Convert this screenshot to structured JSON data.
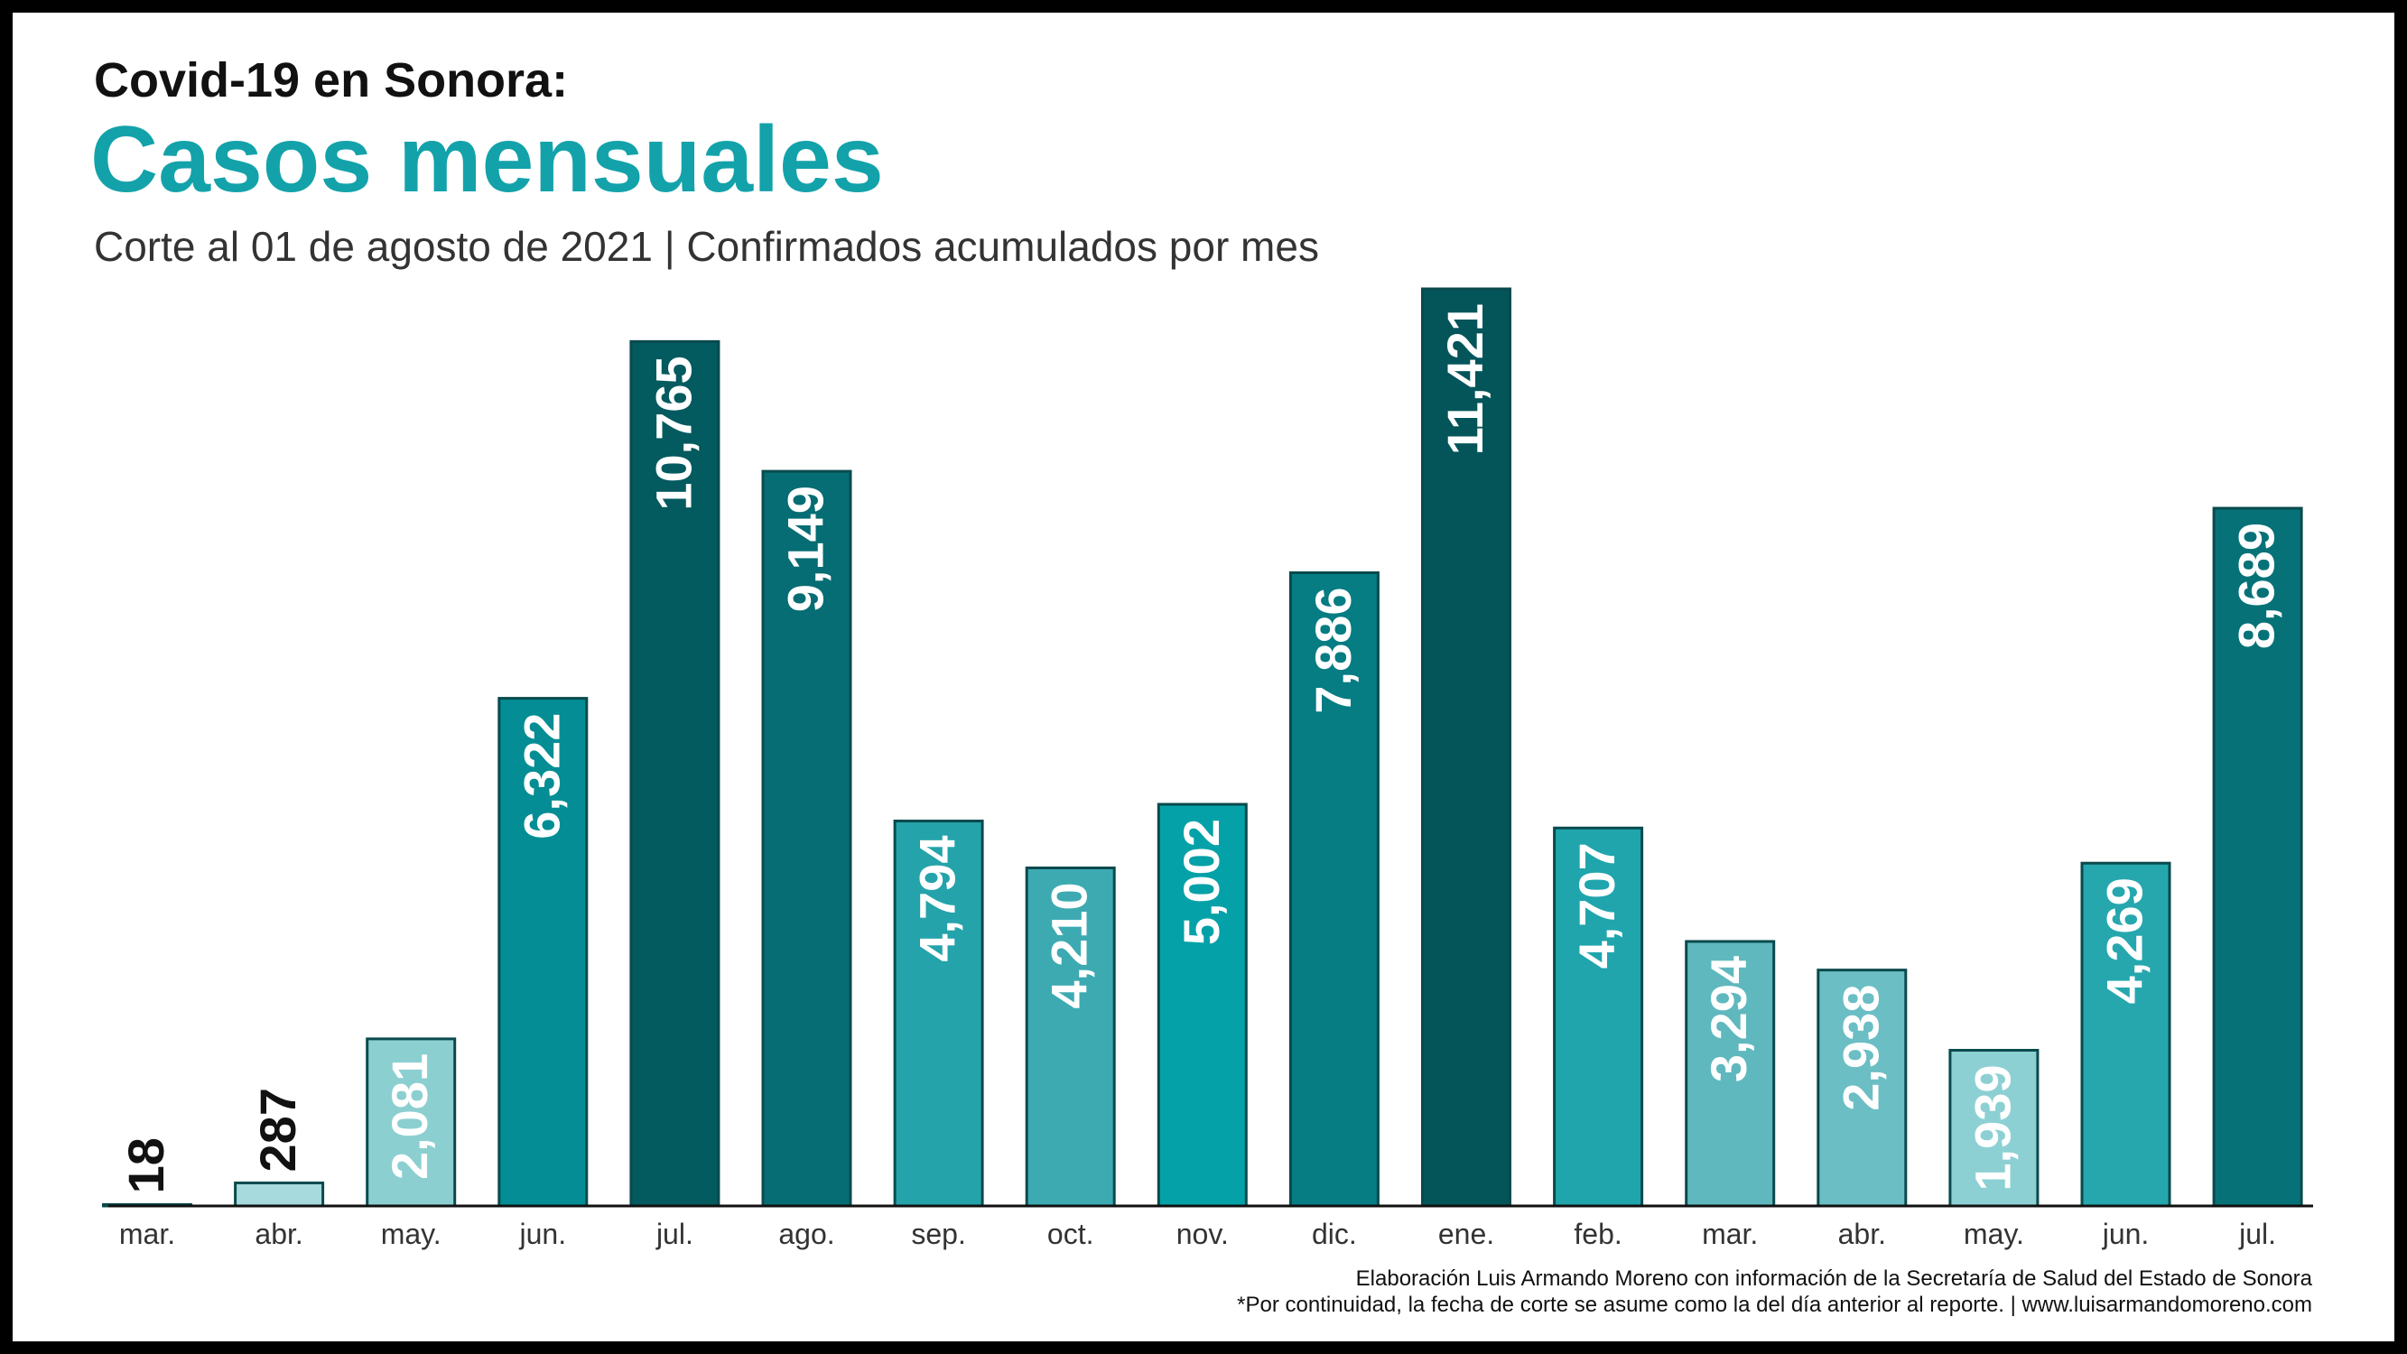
{
  "header": {
    "heading": "Covid-19 en Sonora:",
    "title": "Casos mensuales",
    "subtitle": "Corte al 01 de agosto de 2021 | Confirmados acumulados por mes"
  },
  "footer": {
    "line1": "Elaboración Luis Armando Moreno con información de la Secretaría de Salud del Estado de Sonora",
    "line2": "*Por continuidad, la fecha de corte se asume como la del día anterior al reporte. | www.luisarmandomoreno.com"
  },
  "chart_data": {
    "type": "bar",
    "categories": [
      "mar.",
      "abr.",
      "may.",
      "jun.",
      "jul.",
      "ago.",
      "sep.",
      "oct.",
      "nov.",
      "dic.",
      "ene.",
      "feb.",
      "mar.",
      "abr.",
      "may.",
      "jun.",
      "jul."
    ],
    "values": [
      18,
      287,
      2081,
      6322,
      10765,
      9149,
      4794,
      4210,
      5002,
      7886,
      11421,
      4707,
      3294,
      2938,
      1939,
      4269,
      8689
    ],
    "value_labels": [
      "18",
      "287",
      "2,081",
      "6,322",
      "10,765",
      "9,149",
      "4,794",
      "4,210",
      "5,002",
      "7,886",
      "11,421",
      "4,707",
      "3,294",
      "2,938",
      "1,939",
      "4,269",
      "8,689"
    ],
    "colors": [
      "#7fcaca",
      "#a6dadc",
      "#8ccfd1",
      "#048d94",
      "#035a5f",
      "#056d73",
      "#24a3aa",
      "#3daab2",
      "#05a1a8",
      "#067c83",
      "#03555a",
      "#20a5ad",
      "#5fb8be",
      "#6bbec4",
      "#8dd0d4",
      "#26a7ae",
      "#067278"
    ],
    "label_colors": [
      "#111111",
      "#111111",
      "#ffffff",
      "#ffffff",
      "#ffffff",
      "#ffffff",
      "#ffffff",
      "#ffffff",
      "#ffffff",
      "#ffffff",
      "#ffffff",
      "#ffffff",
      "#ffffff",
      "#ffffff",
      "#ffffff",
      "#ffffff",
      "#ffffff"
    ],
    "bar_border_color": "#0a4a4d",
    "title": "Casos mensuales",
    "xlabel": "",
    "ylabel": "",
    "ylim": [
      0,
      11421
    ],
    "grid": false,
    "legend": "none"
  }
}
